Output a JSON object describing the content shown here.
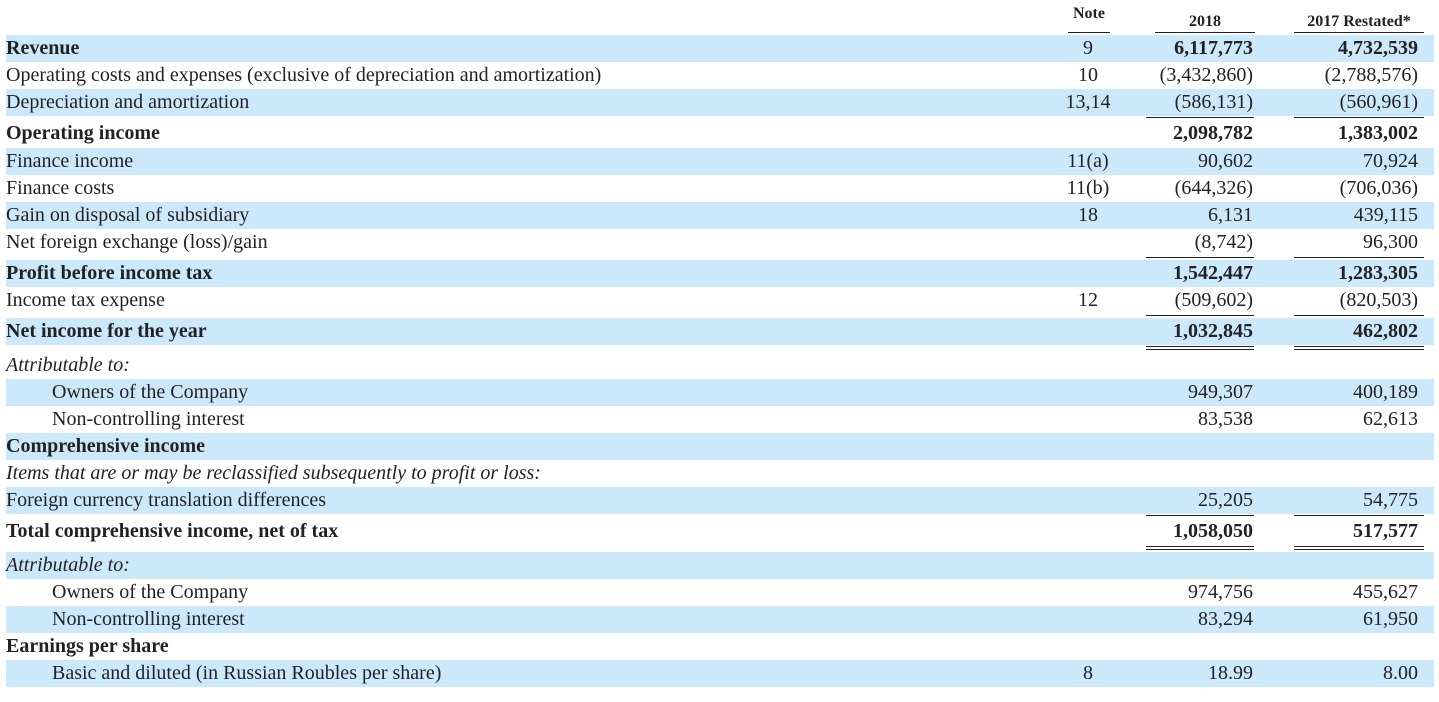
{
  "headers": {
    "note": "Note",
    "y2018": "2018",
    "y2017": "2017 Restated*"
  },
  "rows": [
    {
      "label": "Revenue",
      "note": "9",
      "v2018": "6,117,773",
      "v2017": "4,732,539"
    },
    {
      "label": "Operating costs and expenses (exclusive of depreciation and amortization)",
      "note": "10",
      "v2018": "(3,432,860)",
      "v2017": "(2,788,576)"
    },
    {
      "label": "Depreciation and amortization",
      "note": "13,14",
      "v2018": "(586,131)",
      "v2017": "(560,961)"
    },
    {
      "label": "Operating income",
      "note": "",
      "v2018": "2,098,782",
      "v2017": "1,383,002"
    },
    {
      "label": "Finance income",
      "note": "11(a)",
      "v2018": "90,602",
      "v2017": "70,924"
    },
    {
      "label": "Finance costs",
      "note": "11(b)",
      "v2018": "(644,326)",
      "v2017": "(706,036)"
    },
    {
      "label": "Gain on disposal of subsidiary",
      "note": "18",
      "v2018": "6,131",
      "v2017": "439,115"
    },
    {
      "label": "Net foreign exchange (loss)/gain",
      "note": "",
      "v2018": "(8,742)",
      "v2017": "96,300"
    },
    {
      "label": "Profit before income tax",
      "note": "",
      "v2018": "1,542,447",
      "v2017": "1,283,305"
    },
    {
      "label": "Income tax expense",
      "note": "12",
      "v2018": "(509,602)",
      "v2017": "(820,503)"
    },
    {
      "label": "Net income for the year",
      "note": "",
      "v2018": "1,032,845",
      "v2017": "462,802"
    },
    {
      "label": "Attributable to:",
      "note": "",
      "v2018": "",
      "v2017": ""
    },
    {
      "label": "Owners of the Company",
      "note": "",
      "v2018": "949,307",
      "v2017": "400,189"
    },
    {
      "label": "Non-controlling interest",
      "note": "",
      "v2018": "83,538",
      "v2017": "62,613"
    },
    {
      "label": "Comprehensive income",
      "note": "",
      "v2018": "",
      "v2017": ""
    },
    {
      "label": "Items that are or may be reclassified subsequently to profit or loss:",
      "note": "",
      "v2018": "",
      "v2017": ""
    },
    {
      "label": "Foreign currency translation differences",
      "note": "",
      "v2018": "25,205",
      "v2017": "54,775"
    },
    {
      "label": "Total comprehensive income, net of tax",
      "note": "",
      "v2018": "1,058,050",
      "v2017": "517,577"
    },
    {
      "label": "Attributable to:",
      "note": "",
      "v2018": "",
      "v2017": ""
    },
    {
      "label": "Owners of the Company",
      "note": "",
      "v2018": "974,756",
      "v2017": "455,627"
    },
    {
      "label": "Non-controlling interest",
      "note": "",
      "v2018": "83,294",
      "v2017": "61,950"
    },
    {
      "label": "Earnings per share",
      "note": "",
      "v2018": "",
      "v2017": ""
    },
    {
      "label": "Basic and diluted (in Russian Roubles per share)",
      "note": "8",
      "v2018": "18.99",
      "v2017": "8.00"
    }
  ],
  "colors": {
    "row_shade": "#cce9fb",
    "text": "#222222"
  }
}
